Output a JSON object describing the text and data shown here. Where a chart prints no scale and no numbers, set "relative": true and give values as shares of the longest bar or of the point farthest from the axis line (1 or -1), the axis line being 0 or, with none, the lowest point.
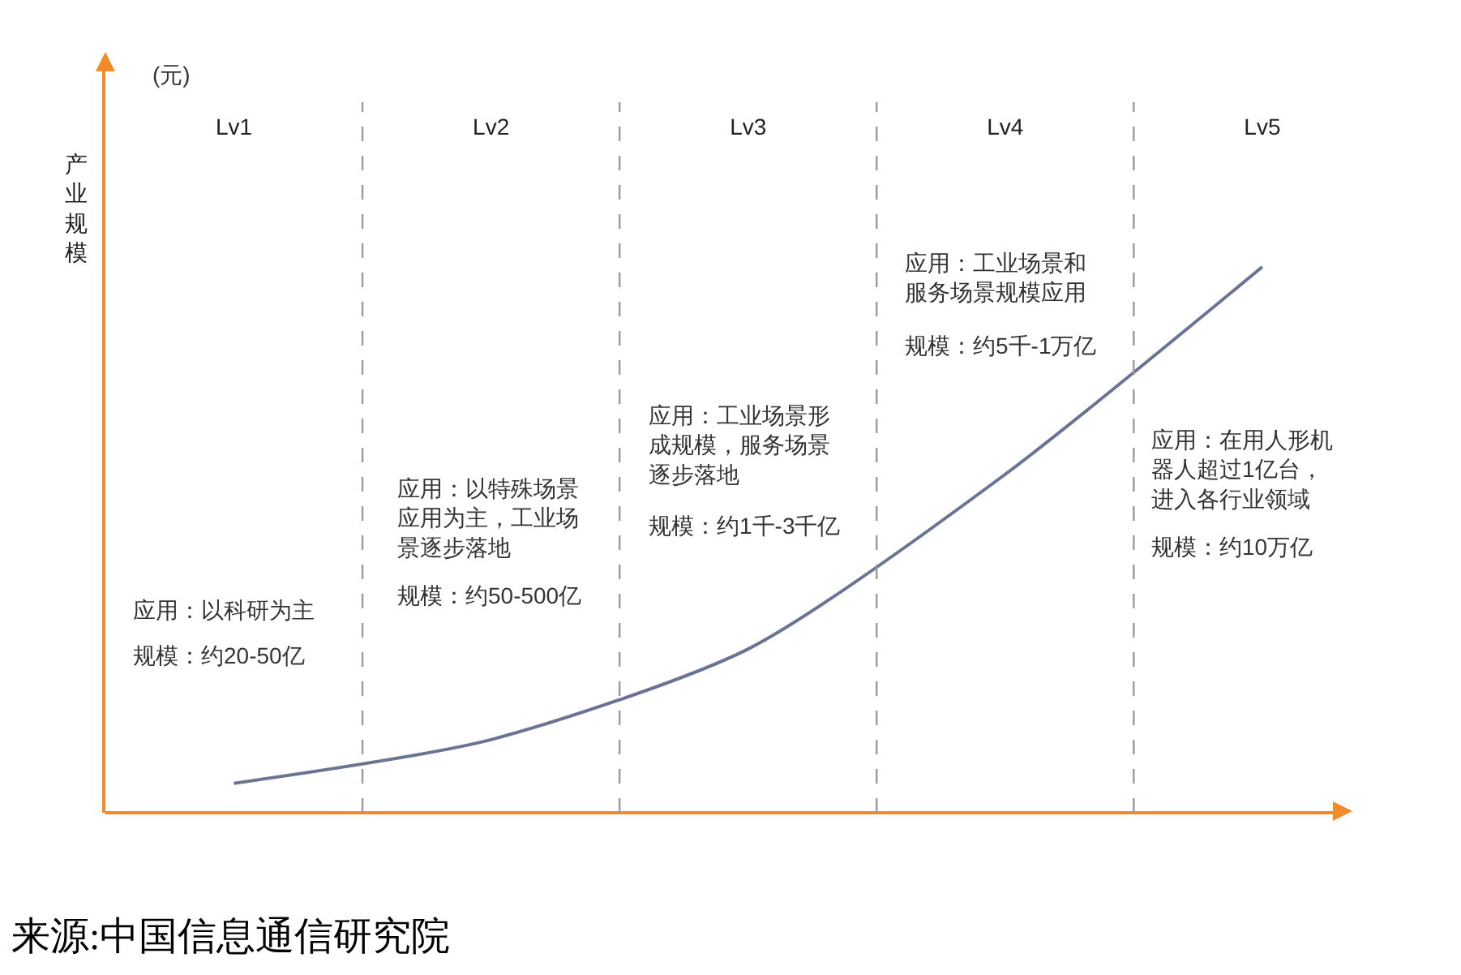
{
  "chart_data": {
    "type": "line",
    "relative": true,
    "ylabel": "产业规模",
    "categories": [
      "Lv1",
      "Lv2",
      "Lv3",
      "Lv4",
      "Lv5"
    ],
    "tick_labels": "x",
    "grid": "x",
    "marker": "none",
    "line_style": "solid",
    "series": [
      {
        "color": "#6b7394",
        "values": [
          0.054,
          0.134,
          0.3,
          0.62,
          1
        ]
      }
    ],
    "annotations": [
      "(元)",
      "应用：以科研为主",
      "规模：约20-50亿",
      "应用：以特殊场景应用为主，工业场景逐步落地",
      "规模：约50-500亿",
      "应用：工业场景形成规模，服务场景逐步落地",
      "规模：约1千-3千亿",
      "应用：工业场景和服务场景规模应用",
      "规模：约5千-1万亿",
      "应用：在用人形机器人超过1亿台，进入各行业领域",
      "规模：约10万亿",
      "来源:中国信息通信研究院"
    ]
  }
}
